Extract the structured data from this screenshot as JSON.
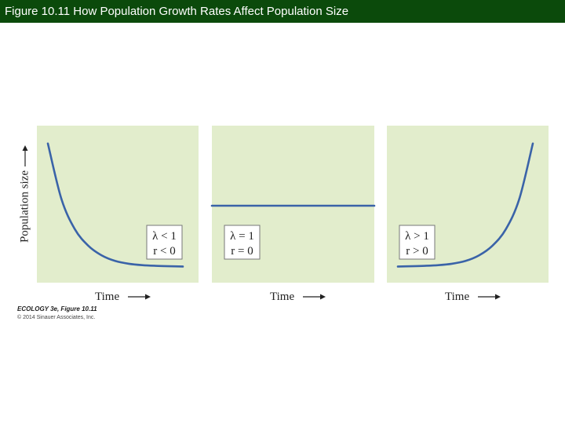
{
  "header": {
    "title": "Figure 10.11 How Population Growth Rates Affect Population Size"
  },
  "credit": {
    "line1": "ECOLOGY 3e, Figure 10.11",
    "line2": "© 2014 Sinauer Associates, Inc."
  },
  "colors": {
    "panel_bg": "#e2edcc",
    "curve": "#3a63a8",
    "header_bg": "#0b4a0b"
  },
  "chart_data": [
    {
      "type": "line",
      "title": "",
      "ylabel": "Population size",
      "xlabel": "Time",
      "legend": [
        "λ < 1",
        "r < 0"
      ],
      "trend": "decreasing exponential",
      "x": [
        0,
        0.1,
        0.2,
        0.3,
        0.4,
        0.5,
        0.6,
        0.7,
        0.8,
        0.9,
        1.0
      ],
      "values": [
        0.95,
        0.55,
        0.33,
        0.21,
        0.14,
        0.1,
        0.08,
        0.07,
        0.065,
        0.062,
        0.06
      ],
      "xlim": [
        0,
        1
      ],
      "ylim": [
        0,
        1
      ]
    },
    {
      "type": "line",
      "title": "",
      "ylabel": "",
      "xlabel": "Time",
      "legend": [
        "λ = 1",
        "r = 0"
      ],
      "trend": "constant",
      "x": [
        0,
        1
      ],
      "values": [
        0.5,
        0.5
      ],
      "xlim": [
        0,
        1
      ],
      "ylim": [
        0,
        1
      ]
    },
    {
      "type": "line",
      "title": "",
      "ylabel": "",
      "xlabel": "Time",
      "legend": [
        "λ > 1",
        "r > 0"
      ],
      "trend": "increasing exponential",
      "x": [
        0,
        0.1,
        0.2,
        0.3,
        0.4,
        0.5,
        0.6,
        0.7,
        0.8,
        0.9,
        1.0
      ],
      "values": [
        0.06,
        0.062,
        0.065,
        0.07,
        0.08,
        0.1,
        0.14,
        0.21,
        0.33,
        0.55,
        0.95
      ],
      "xlim": [
        0,
        1
      ],
      "ylim": [
        0,
        1
      ]
    }
  ]
}
